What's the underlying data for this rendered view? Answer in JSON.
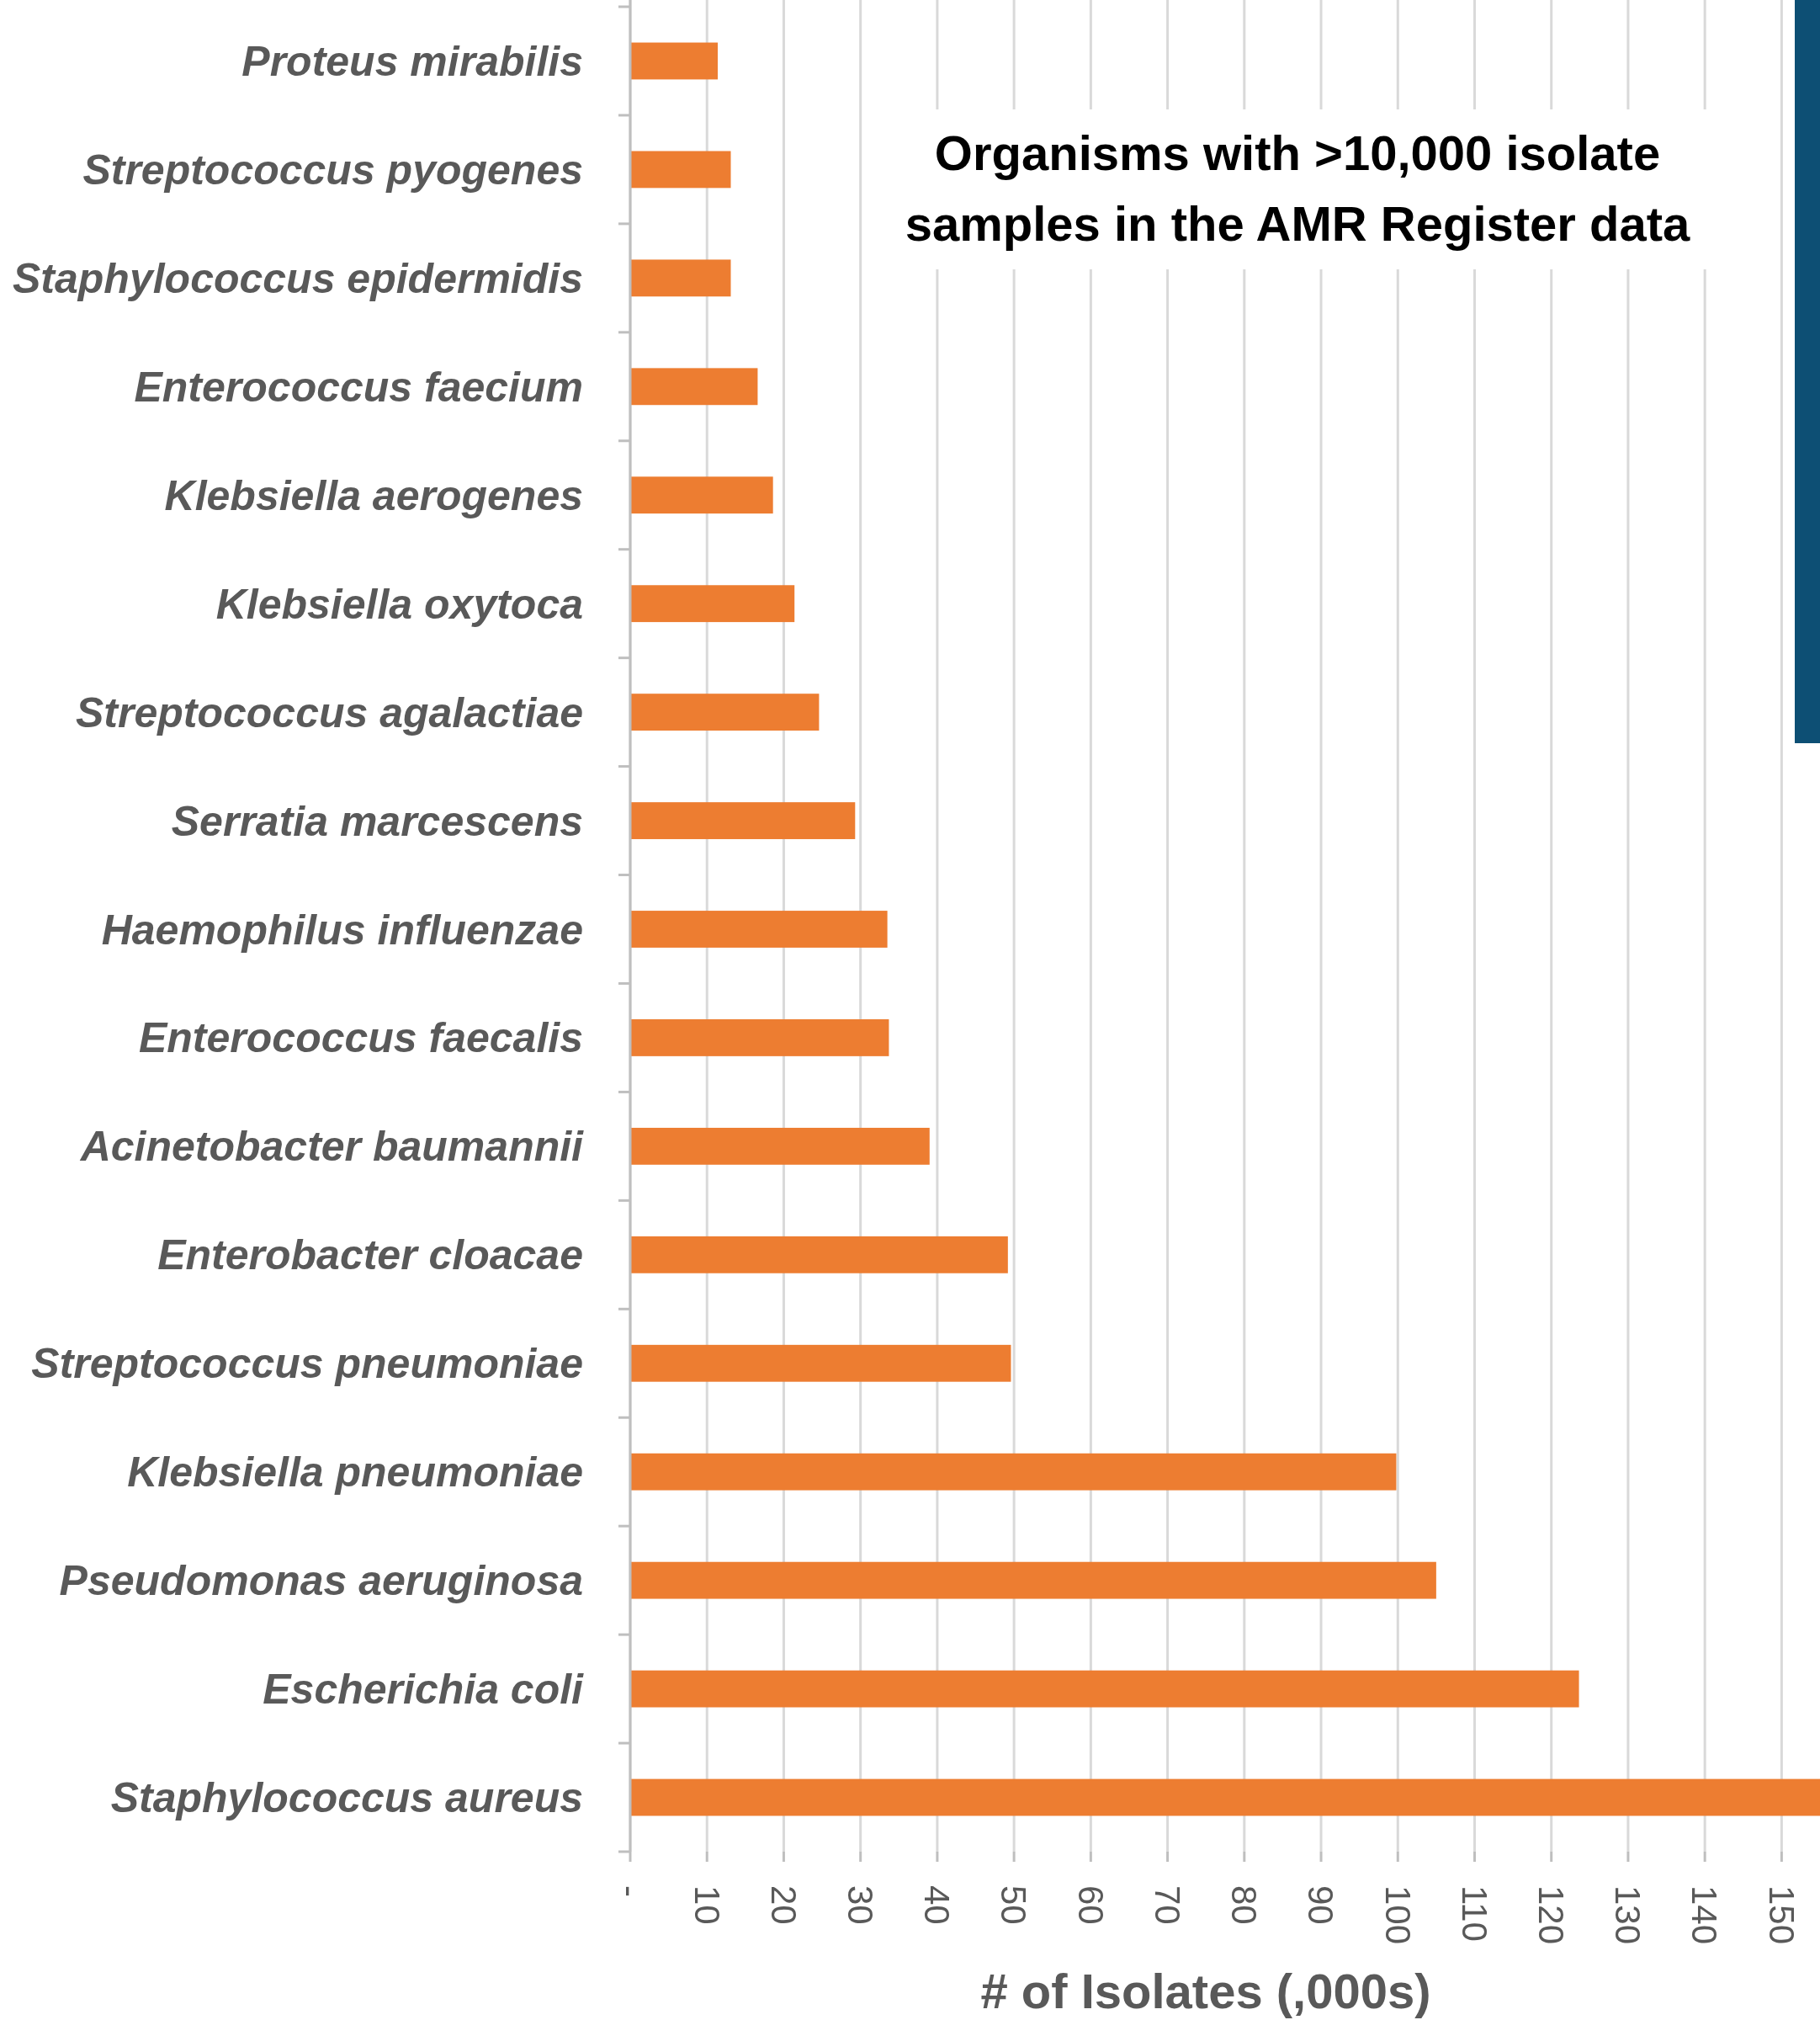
{
  "chart_data": {
    "type": "bar",
    "orientation": "horizontal",
    "title": "Organisms with >10,000 isolate samples in the AMR Register data",
    "xlabel": "# of Isolates (,000s)",
    "categories": [
      "Proteus mirabilis",
      "Streptococcus pyogenes",
      "Staphylococcus epidermidis",
      "Enterococcus faecium",
      "Klebsiella aerogenes",
      "Klebsiella oxytoca",
      "Streptococcus agalactiae",
      "Serratia marcescens",
      "Haemophilus influenzae",
      "Enterococcus faecalis",
      "Acinetobacter baumannii",
      "Enterobacter cloacae",
      "Streptococcus pneumoniae",
      "Klebsiella pneumoniae",
      "Pseudomonas aeruginosa",
      "Escherichia coli",
      "Staphylococcus aureus"
    ],
    "values": [
      11.4,
      13.1,
      13.1,
      16.6,
      18.6,
      21.4,
      24.6,
      29.3,
      33.5,
      33.7,
      39,
      49.2,
      49.6,
      99.8,
      105,
      123.6,
      155
    ],
    "color": "#ed7d31",
    "xlim": [
      0,
      155
    ],
    "xticks": [
      {
        "value": 0,
        "label": "-"
      },
      10,
      20,
      30,
      40,
      50,
      60,
      70,
      80,
      90,
      100,
      110,
      120,
      130,
      140,
      150
    ],
    "grid": "x"
  }
}
